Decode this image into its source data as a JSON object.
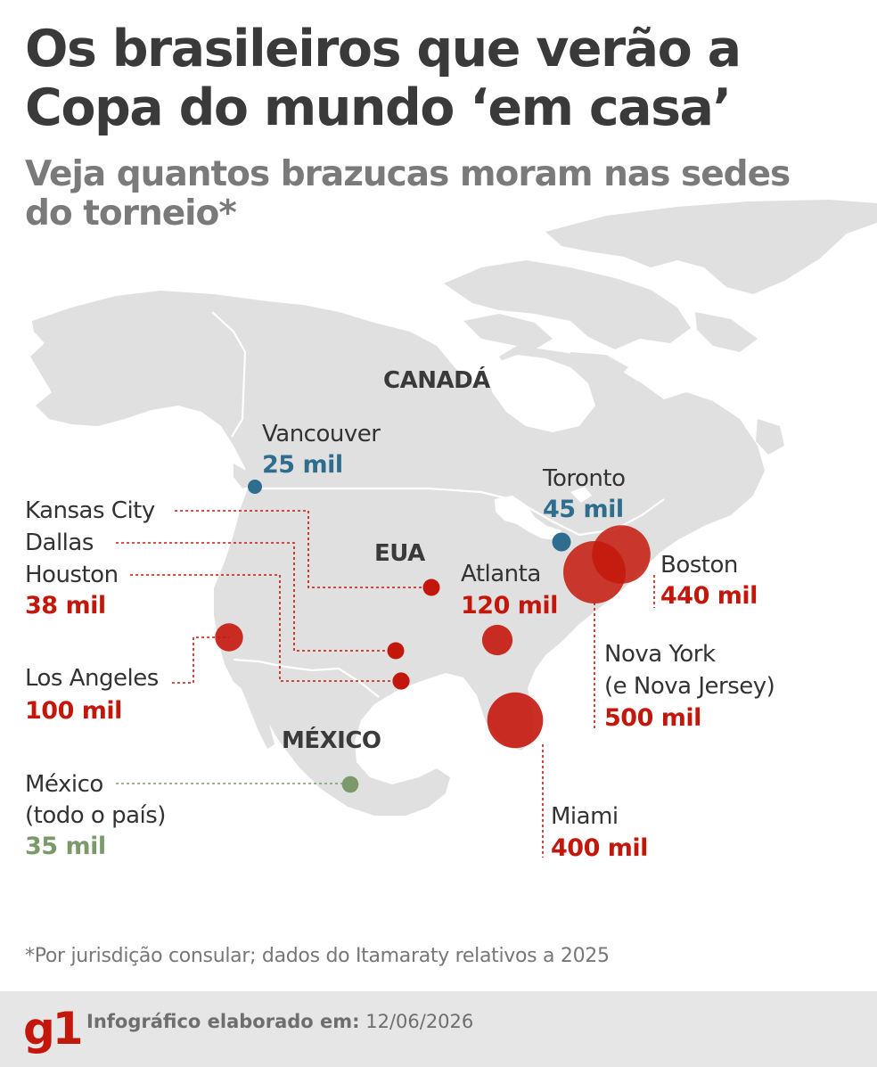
{
  "title": "Os brasileiros que verão a Copa do mundo ‘em casa’",
  "subtitle": "Veja quantos brazucas moram nas sedes do torneio*",
  "countries": {
    "canada": "CANADÁ",
    "usa": "EUA",
    "mexico": "MÉXICO"
  },
  "colors": {
    "usa": "#c4170c",
    "canada": "#2f6d8e",
    "mexico": "#7a9a6b",
    "land": "#e0e0e0",
    "footer_bg": "#e6e6e6"
  },
  "locations": [
    {
      "id": "vancouver",
      "name": "Vancouver",
      "value": "25 mil",
      "population": 25000,
      "country": "canada"
    },
    {
      "id": "toronto",
      "name": "Toronto",
      "value": "45 mil",
      "population": 45000,
      "country": "canada"
    },
    {
      "id": "kansas-city",
      "name": "Kansas City",
      "country": "usa",
      "group": "texas-central"
    },
    {
      "id": "dallas",
      "name": "Dallas",
      "country": "usa",
      "group": "texas-central"
    },
    {
      "id": "houston",
      "name": "Houston",
      "value": "38 mil",
      "population": 38000,
      "country": "usa",
      "group": "texas-central"
    },
    {
      "id": "atlanta",
      "name": "Atlanta",
      "value": "120 mil",
      "population": 120000,
      "country": "usa"
    },
    {
      "id": "boston",
      "name": "Boston",
      "value": "440 mil",
      "population": 440000,
      "country": "usa"
    },
    {
      "id": "los-angeles",
      "name": "Los Angeles",
      "value": "100 mil",
      "population": 100000,
      "country": "usa"
    },
    {
      "id": "new-york",
      "name": "Nova York",
      "name2": "(e Nova Jersey)",
      "value": "500 mil",
      "population": 500000,
      "country": "usa"
    },
    {
      "id": "miami",
      "name": "Miami",
      "value": "400 mil",
      "population": 400000,
      "country": "usa"
    },
    {
      "id": "mexico",
      "name": "México",
      "name2": "(todo o país)",
      "value": "35 mil",
      "population": 35000,
      "country": "mexico"
    }
  ],
  "footnote": "*Por jurisdição consular; dados do Itamaraty relativos a 2025",
  "footer": {
    "logo": "g1",
    "credit_label": "Infográfico elaborado em:",
    "date": "12/06/2026"
  }
}
